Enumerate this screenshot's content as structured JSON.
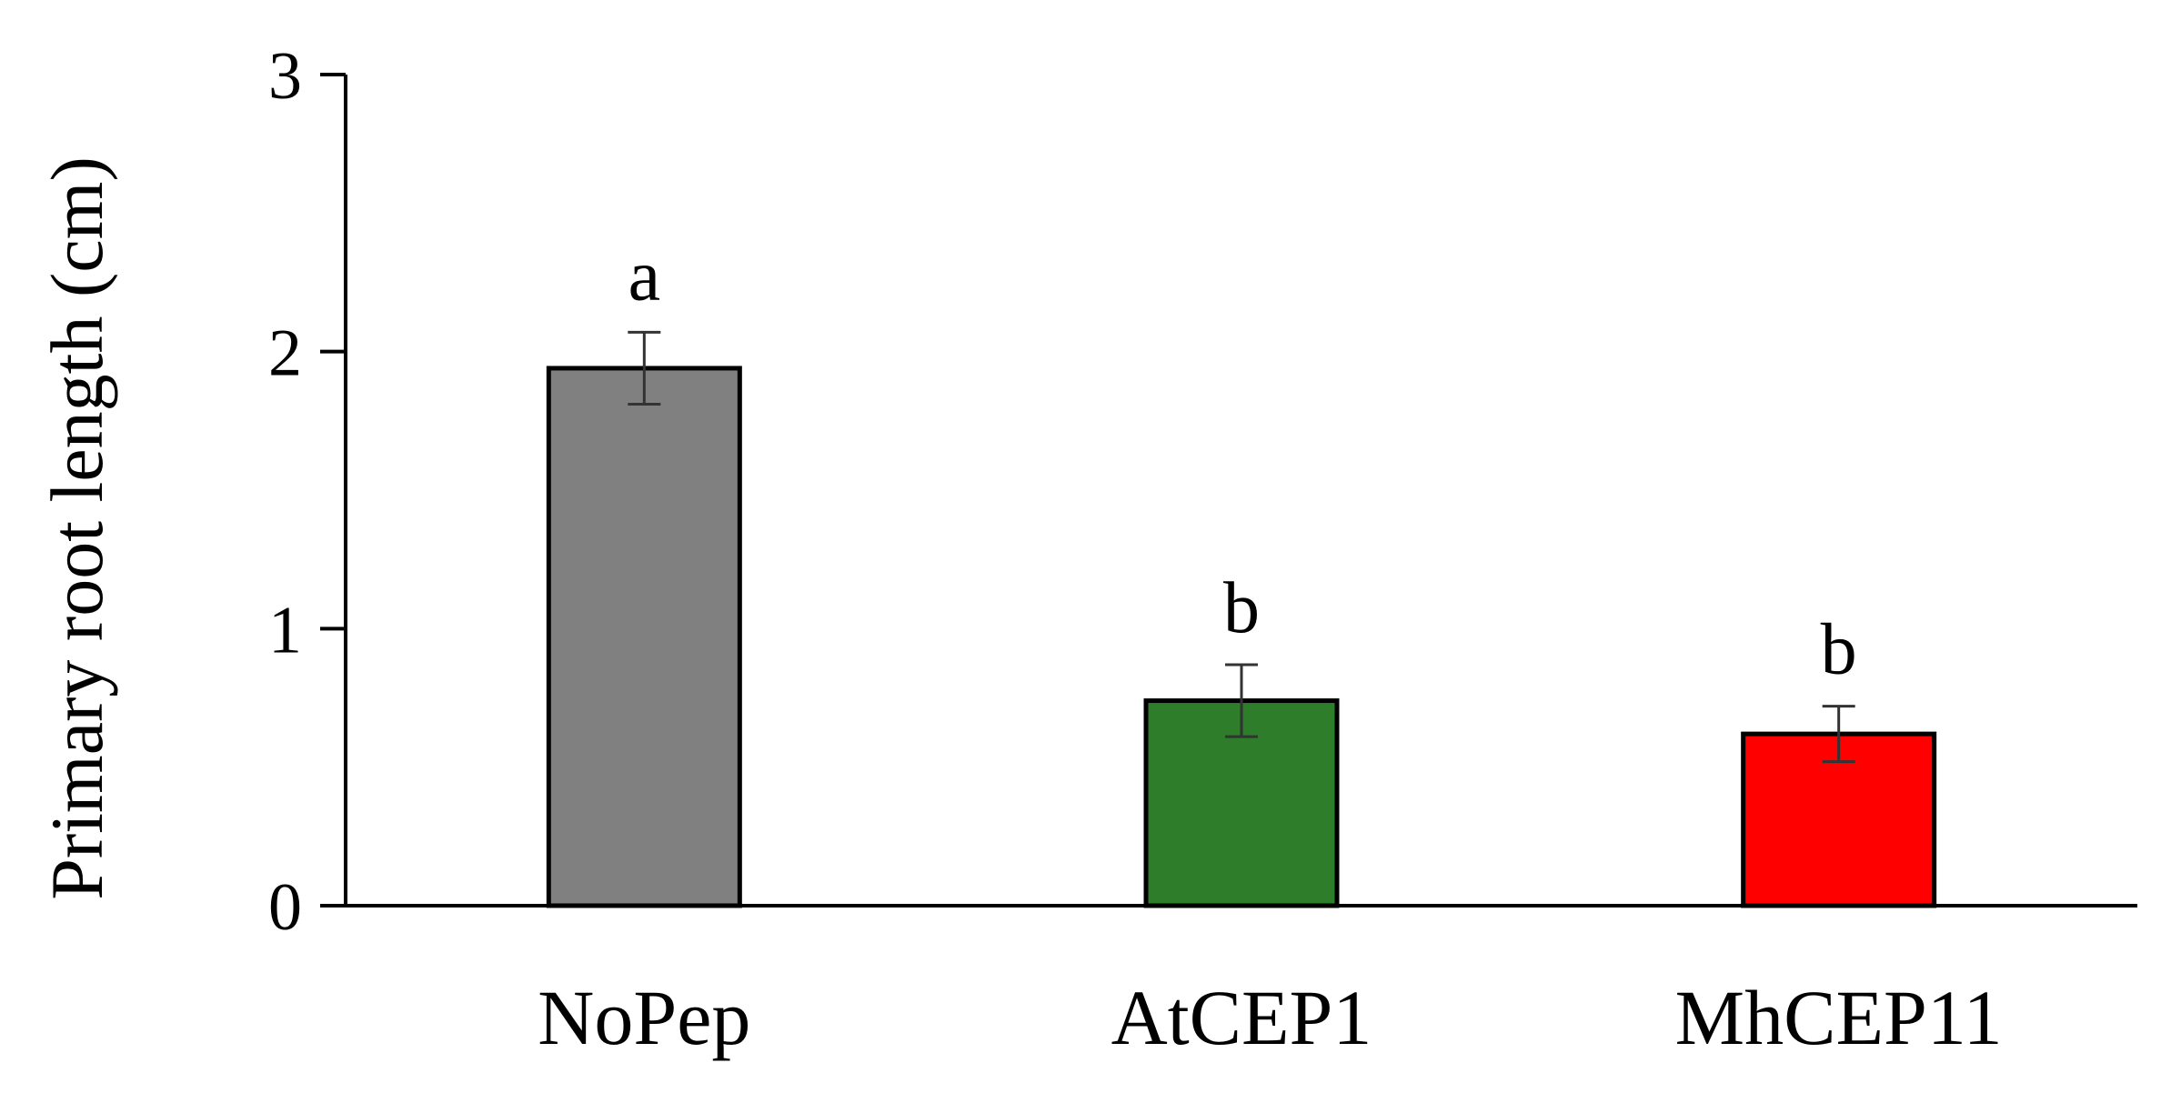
{
  "chart_data": {
    "type": "bar",
    "title": "",
    "xlabel": "",
    "ylabel": "Primary root length (cm)",
    "ylim": [
      0,
      3
    ],
    "yticks": [
      "0",
      "1",
      "2",
      "3"
    ],
    "grid": false,
    "legend": "none",
    "categories": [
      "NoPep",
      "AtCEP1",
      "MhCEP11"
    ],
    "values": [
      1.94,
      0.74,
      0.62
    ],
    "errors": [
      0.13,
      0.13,
      0.1
    ],
    "significance": [
      "a",
      "b",
      "b"
    ],
    "colors": [
      "#808080",
      "#2E7D2B",
      "#FF0000"
    ]
  }
}
